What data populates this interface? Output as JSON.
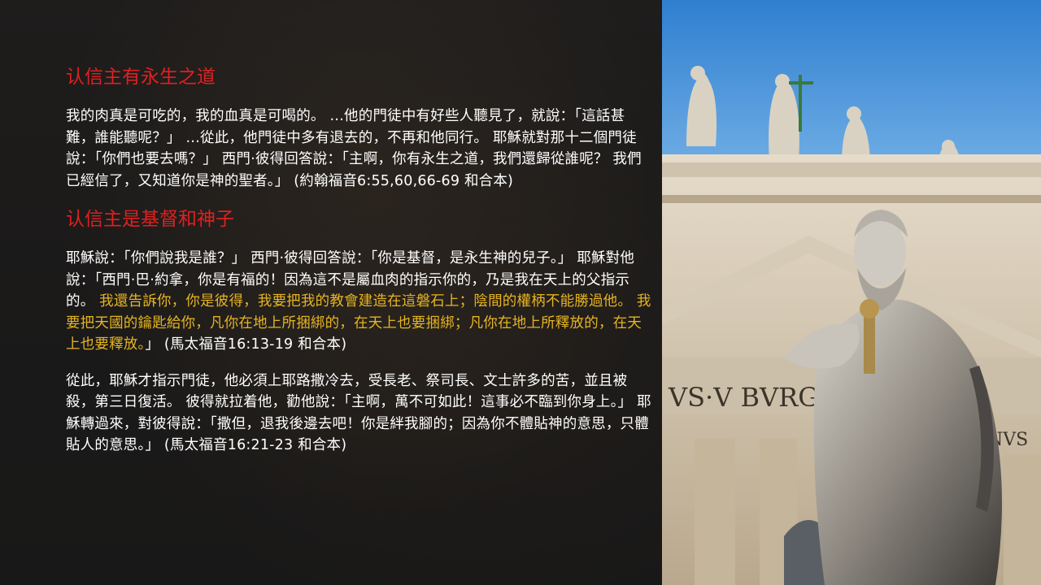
{
  "sections": [
    {
      "heading": "认信主有永生之道",
      "paragraphs": [
        {
          "text": "我的肉真是可吃的，我的血真是可喝的。 …他的門徒中有好些人聽見了，就說：「這話甚難，誰能聽呢？」 …從此，他門徒中多有退去的，不再和他同行。 耶穌就對那十二個門徒說：「你們也要去嗎？」 西門·彼得回答說：「主啊，你有永生之道，我們還歸從誰呢？ 我們已經信了，又知道你是神的聖者。」 (約翰福音6:55,60,66-69 和合本)"
        }
      ]
    },
    {
      "heading": "认信主是基督和神子",
      "paragraphs": [
        {
          "before": "耶穌說：「你們說我是誰？」 西門·彼得回答說：「你是基督，是永生神的兒子。」 耶穌對他說：「西門·巴·約拿，你是有福的！因為這不是屬血肉的指示你的，乃是我在天上的父指示的。 ",
          "highlight": "我還告訴你，你是彼得，我要把我的教會建造在這磐石上；陰間的權柄不能勝過他。 我要把天國的鑰匙給你，凡你在地上所捆綁的，在天上也要捆綁；凡你在地上所釋放的，在天上也要釋放。",
          "after": "」 (馬太福音16:13-19 和合本)"
        },
        {
          "text": "從此，耶穌才指示門徒，他必須上耶路撒冷去，受長老、祭司長、文士許多的苦，並且被殺，第三日復活。 彼得就拉着他，勸他說：「主啊，萬不可如此！這事必不臨到你身上。」 耶穌轉過來，對彼得說：「撒但，退我後邊去吧！你是絆我腳的；因為你不體貼神的意思，只體貼人的意思。」 (馬太福音16:21-23 和合本)"
        }
      ]
    }
  ],
  "photo": {
    "description_icon": "statue-of-st-peter-icon",
    "facade_inscription": "VS·V BVRGH",
    "facade_inscription_right": "NVS"
  },
  "colors": {
    "heading": "#e02020",
    "highlight": "#e6b422",
    "body_text": "#ffffff",
    "panel_bg": "#242221",
    "sky": "#3f8fd8"
  }
}
